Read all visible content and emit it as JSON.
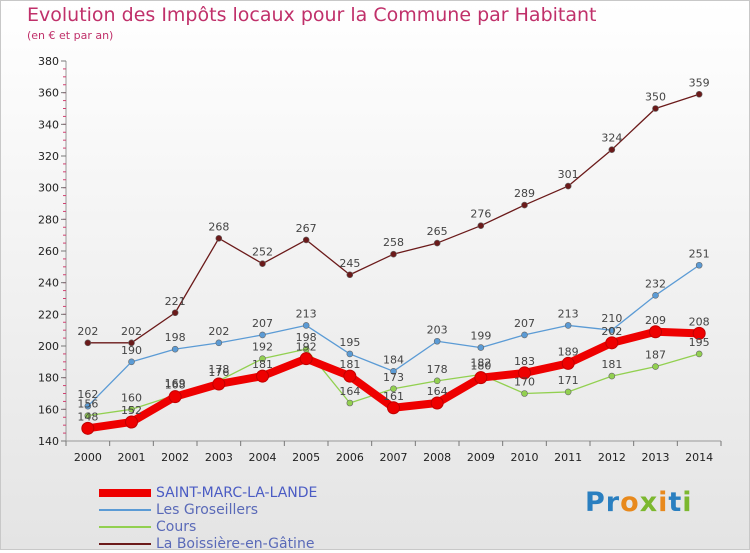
{
  "header": {
    "title": "Evolution des Impôts locaux pour la Commune par Habitant",
    "subtitle": "(en € et par an)"
  },
  "logo": {
    "text": "Proxiti"
  },
  "chart_data": {
    "type": "line",
    "x": [
      2000,
      2001,
      2002,
      2003,
      2004,
      2005,
      2006,
      2007,
      2008,
      2009,
      2010,
      2011,
      2012,
      2013,
      2014
    ],
    "ylim": [
      140,
      380
    ],
    "yticks": [
      140,
      160,
      180,
      200,
      220,
      240,
      260,
      280,
      300,
      320,
      340,
      360,
      380
    ],
    "legend_position": "bottom-left",
    "grid": false,
    "series": [
      {
        "name": "SAINT-MARC-LA-LANDE",
        "color": "#ee0000",
        "values": [
          148,
          152,
          168,
          176,
          181,
          192,
          181,
          161,
          164,
          180,
          183,
          189,
          202,
          209,
          208
        ],
        "labels": [
          "148",
          "152",
          "168",
          "176",
          "181",
          "192",
          "181",
          "161",
          "164",
          "180",
          "183",
          "189",
          "202",
          "209",
          "208"
        ]
      },
      {
        "name": "Les Groseillers",
        "color": "#5b9bd5",
        "values": [
          162,
          190,
          198,
          202,
          207,
          213,
          195,
          184,
          203,
          199,
          207,
          213,
          210,
          232,
          251
        ],
        "labels": [
          "162",
          "190",
          "198",
          "202",
          "207",
          "213",
          "195",
          "184",
          "203",
          "199",
          "207",
          "213",
          "210",
          "232",
          "251"
        ]
      },
      {
        "name": "Cours",
        "color": "#92d050",
        "values": [
          156,
          160,
          169,
          178,
          192,
          198,
          164,
          173,
          178,
          182,
          170,
          171,
          181,
          187,
          195
        ],
        "labels": [
          "156",
          "160",
          "169",
          "178",
          "192",
          "198",
          "164",
          "173",
          "178",
          "182",
          "170",
          "171",
          "181",
          "187",
          "195"
        ]
      },
      {
        "name": "La Boissière-en-Gâtine",
        "color": "#6b1a1a",
        "values": [
          202,
          202,
          221,
          268,
          252,
          267,
          245,
          258,
          265,
          276,
          289,
          301,
          324,
          350,
          359
        ],
        "labels": [
          "202",
          "202",
          "221",
          "268",
          "252",
          "267",
          "245",
          "258",
          "265",
          "276",
          "289",
          "301",
          "324",
          "350",
          "359"
        ]
      }
    ]
  }
}
